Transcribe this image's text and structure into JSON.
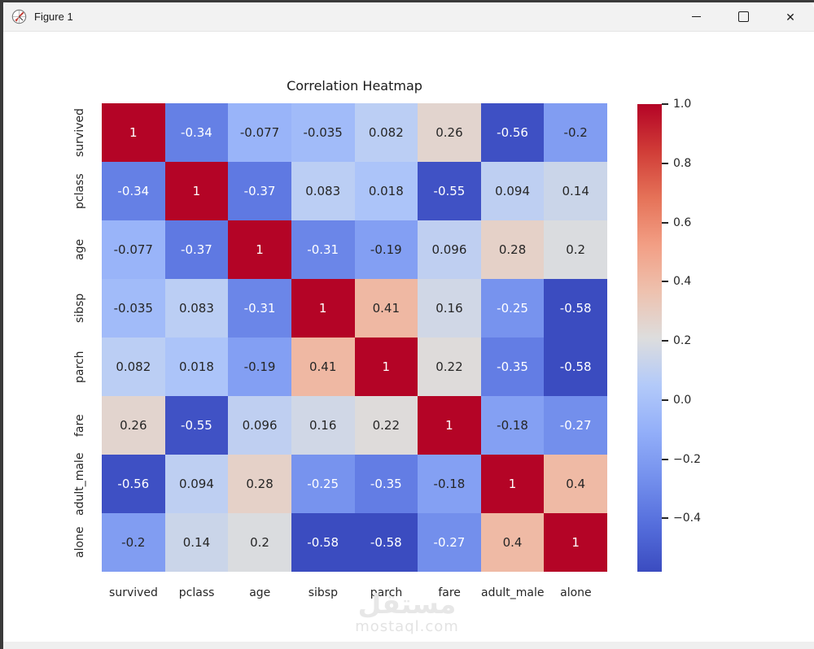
{
  "window": {
    "title": "Figure 1",
    "close_glyph": "✕"
  },
  "chart_data": {
    "type": "heatmap",
    "title": "Correlation Heatmap",
    "categories": [
      "survived",
      "pclass",
      "age",
      "sibsp",
      "parch",
      "fare",
      "adult_male",
      "alone"
    ],
    "matrix": [
      [
        1,
        -0.34,
        -0.077,
        -0.035,
        0.082,
        0.26,
        -0.56,
        -0.2
      ],
      [
        -0.34,
        1,
        -0.37,
        0.083,
        0.018,
        -0.55,
        0.094,
        0.14
      ],
      [
        -0.077,
        -0.37,
        1,
        -0.31,
        -0.19,
        0.096,
        0.28,
        0.2
      ],
      [
        -0.035,
        0.083,
        -0.31,
        1,
        0.41,
        0.16,
        -0.25,
        -0.58
      ],
      [
        0.082,
        0.018,
        -0.19,
        0.41,
        1,
        0.22,
        -0.35,
        -0.58
      ],
      [
        0.26,
        -0.55,
        0.096,
        0.16,
        0.22,
        1,
        -0.18,
        -0.27
      ],
      [
        -0.56,
        0.094,
        0.28,
        -0.25,
        -0.35,
        -0.18,
        1,
        0.4
      ],
      [
        -0.2,
        0.14,
        0.2,
        -0.58,
        -0.58,
        -0.27,
        0.4,
        1
      ]
    ],
    "cell_labels": [
      [
        "1",
        "-0.34",
        "-0.077",
        "-0.035",
        "0.082",
        "0.26",
        "-0.56",
        "-0.2"
      ],
      [
        "-0.34",
        "1",
        "-0.37",
        "0.083",
        "0.018",
        "-0.55",
        "0.094",
        "0.14"
      ],
      [
        "-0.077",
        "-0.37",
        "1",
        "-0.31",
        "-0.19",
        "0.096",
        "0.28",
        "0.2"
      ],
      [
        "-0.035",
        "0.083",
        "-0.31",
        "1",
        "0.41",
        "0.16",
        "-0.25",
        "-0.58"
      ],
      [
        "0.082",
        "0.018",
        "-0.19",
        "0.41",
        "1",
        "0.22",
        "-0.35",
        "-0.58"
      ],
      [
        "0.26",
        "-0.55",
        "0.096",
        "0.16",
        "0.22",
        "1",
        "-0.18",
        "-0.27"
      ],
      [
        "-0.56",
        "0.094",
        "0.28",
        "-0.25",
        "-0.35",
        "-0.18",
        "1",
        "0.4"
      ],
      [
        "-0.2",
        "0.14",
        "0.2",
        "-0.58",
        "-0.58",
        "-0.27",
        "0.4",
        "1"
      ]
    ],
    "colormap": "coolwarm",
    "vmin": -0.58,
    "vmax": 1.0,
    "colorbar_tick_labels": [
      "1.0",
      "0.8",
      "0.6",
      "0.4",
      "0.2",
      "0.0",
      "−0.2",
      "−0.4"
    ],
    "colorbar_tick_values": [
      1.0,
      0.8,
      0.6,
      0.4,
      0.2,
      0.0,
      -0.2,
      -0.4
    ],
    "annotation_color_dark": "#262626",
    "annotation_color_light": "#ffffff",
    "cmap_endpoints": {
      "low": "#3b4cc0",
      "mid": "#dddddd",
      "high": "#b40426"
    },
    "legend_position": "right",
    "grid": false
  },
  "watermark": {
    "logo": "مستقل",
    "domain": "mostaql.com"
  }
}
